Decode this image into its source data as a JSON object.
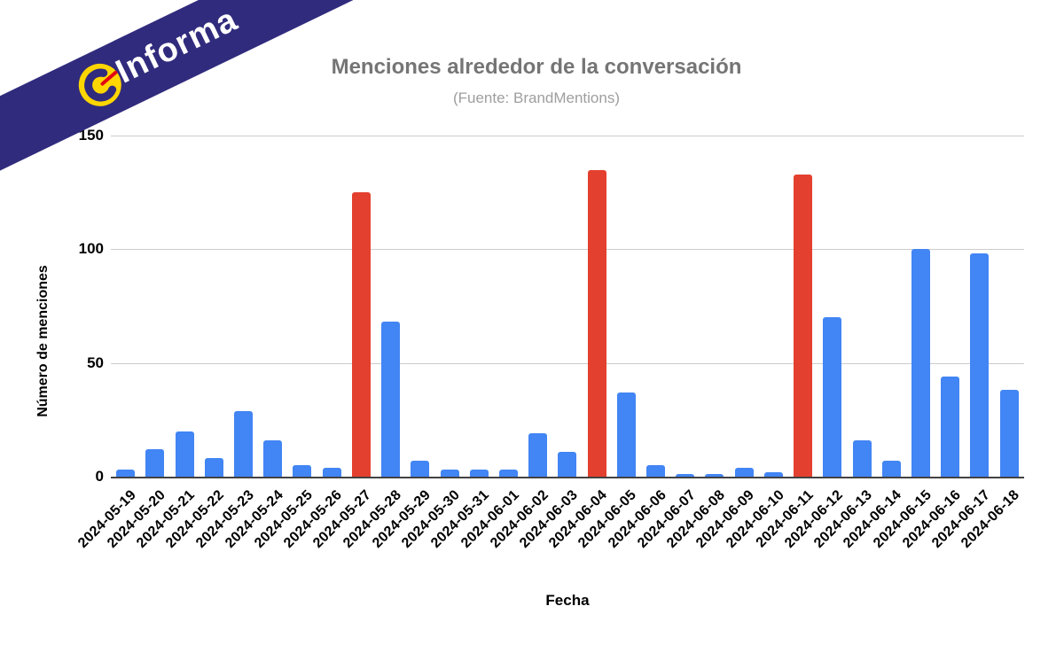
{
  "logo": {
    "brand_text": "Informa",
    "banner_color": "#312b7d",
    "badge_bg": "#ffd600",
    "badge_glyph_color": "#312b7d",
    "badge_accent_color": "#e30613"
  },
  "chart_data": {
    "type": "bar",
    "title": "Menciones alrededor de la conversación",
    "subtitle": "(Fuente: BrandMentions)",
    "xlabel": "Fecha",
    "ylabel": "Número de menciones",
    "ylim": [
      0,
      150
    ],
    "yticks": [
      0,
      50,
      100,
      150
    ],
    "grid": true,
    "legend": "none",
    "categories": [
      "2024-05-19",
      "2024-05-20",
      "2024-05-21",
      "2024-05-22",
      "2024-05-23",
      "2024-05-24",
      "2024-05-25",
      "2024-05-26",
      "2024-05-27",
      "2024-05-28",
      "2024-05-29",
      "2024-05-30",
      "2024-05-31",
      "2024-06-01",
      "2024-06-02",
      "2024-06-03",
      "2024-06-04",
      "2024-06-05",
      "2024-06-06",
      "2024-06-07",
      "2024-06-08",
      "2024-06-09",
      "2024-06-10",
      "2024-06-11",
      "2024-06-12",
      "2024-06-13",
      "2024-06-14",
      "2024-06-15",
      "2024-06-16",
      "2024-06-17",
      "2024-06-18"
    ],
    "values": [
      3,
      12,
      20,
      8,
      29,
      16,
      5,
      4,
      125,
      68,
      7,
      3,
      3,
      3,
      19,
      11,
      135,
      37,
      5,
      1,
      1,
      4,
      2,
      133,
      70,
      16,
      7,
      100,
      44,
      98,
      38
    ],
    "colors": {
      "default": "#4285f4",
      "spike": "#e4402f"
    },
    "spike_indices": [
      8,
      16,
      23
    ]
  }
}
